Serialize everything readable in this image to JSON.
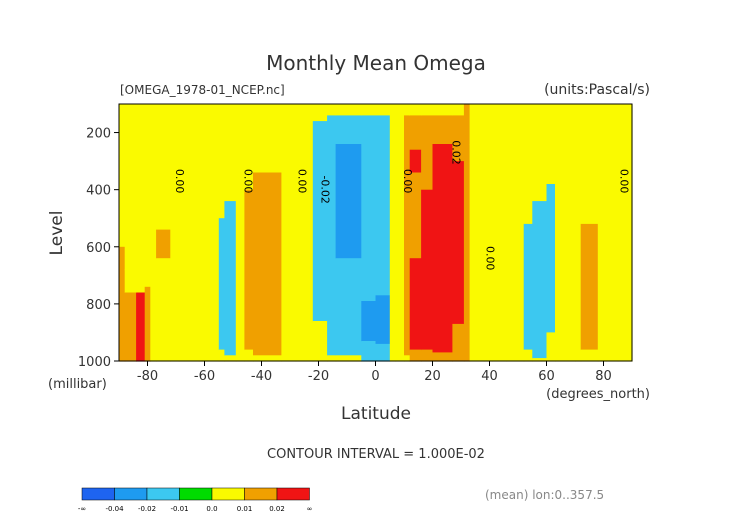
{
  "chart_data": {
    "type": "contour",
    "title": "Monthly Mean Omega",
    "file_label": "[OMEGA_1978-01_NCEP.nc]",
    "units_label": "(units:Pascal/s)",
    "xlabel": "Latitude",
    "xunits": "(degrees_north)",
    "ylabel": "Level",
    "yunits": "(millibar)",
    "xlim": [
      -90,
      90
    ],
    "ylim": [
      1000,
      100
    ],
    "x_ticks": [
      -80,
      -60,
      -40,
      -20,
      0,
      20,
      40,
      60,
      80
    ],
    "x_tick_labels": [
      "-80",
      "-60",
      "-40",
      "-20",
      "0",
      "20",
      "40",
      "60",
      "80"
    ],
    "y_ticks": [
      200,
      400,
      600,
      800,
      1000
    ],
    "y_tick_labels": [
      "200",
      "400",
      "600",
      "800",
      "1000"
    ],
    "contour_interval": "CONTOUR INTERVAL = 1.000E-02",
    "mean_note": "(mean) lon:0..357.5",
    "contour_labels": [
      {
        "text": "0.00",
        "lat": -70,
        "lev": 370
      },
      {
        "text": "0.00",
        "lat": -46,
        "lev": 370
      },
      {
        "text": "0.00",
        "lat": -27,
        "lev": 370
      },
      {
        "text": "-0.02",
        "lat": -19,
        "lev": 400
      },
      {
        "text": "0.00",
        "lat": 10,
        "lev": 370
      },
      {
        "text": "0.02",
        "lat": 27,
        "lev": 270
      },
      {
        "text": "0.00",
        "lat": 39,
        "lev": 640
      },
      {
        "text": "0.00",
        "lat": 86,
        "lev": 370
      }
    ],
    "levels": [
      -0.04,
      -0.02,
      -0.01,
      0.0,
      0.01,
      0.02
    ],
    "colorbar": {
      "labels": [
        "-∞",
        "-0.04",
        "-0.02",
        "-0.01",
        "0.0",
        "0.01",
        "0.02",
        "∞"
      ],
      "colors": [
        "#1e64f0",
        "#1e9bf0",
        "#3cc8f0",
        "#00dc00",
        "#fafa00",
        "#f0a000",
        "#f01414"
      ]
    },
    "columns": [
      {
        "lat_min": -90,
        "lat_max": -88,
        "bands": [
          {
            "from": 100,
            "to": 600,
            "value": 0.0
          },
          {
            "from": 600,
            "to": 1000,
            "value": 0.015
          }
        ]
      },
      {
        "lat_min": -88,
        "lat_max": -84,
        "bands": [
          {
            "from": 100,
            "to": 680,
            "value": 0.0
          },
          {
            "from": 680,
            "to": 760,
            "value": 0.005
          },
          {
            "from": 760,
            "to": 1000,
            "value": 0.015
          }
        ]
      },
      {
        "lat_min": -84,
        "lat_max": -81,
        "bands": [
          {
            "from": 100,
            "to": 640,
            "value": 0.0
          },
          {
            "from": 640,
            "to": 760,
            "value": 0.005
          },
          {
            "from": 760,
            "to": 1000,
            "value": 0.025
          }
        ]
      },
      {
        "lat_min": -81,
        "lat_max": -79,
        "bands": [
          {
            "from": 100,
            "to": 620,
            "value": 0.0
          },
          {
            "from": 620,
            "to": 740,
            "value": 0.005
          },
          {
            "from": 740,
            "to": 1000,
            "value": 0.015
          }
        ]
      },
      {
        "lat_min": -79,
        "lat_max": -77,
        "bands": [
          {
            "from": 100,
            "to": 620,
            "value": 0.0
          },
          {
            "from": 620,
            "to": 1000,
            "value": 0.005
          }
        ]
      },
      {
        "lat_min": -77,
        "lat_max": -72,
        "bands": [
          {
            "from": 100,
            "to": 540,
            "value": 0.005
          },
          {
            "from": 540,
            "to": 640,
            "value": 0.015
          },
          {
            "from": 640,
            "to": 1000,
            "value": 0.005
          }
        ]
      },
      {
        "lat_min": -72,
        "lat_max": -69,
        "bands": [
          {
            "from": 100,
            "to": 1000,
            "value": 0.005
          }
        ]
      },
      {
        "lat_min": -69,
        "lat_max": -62,
        "bands": [
          {
            "from": 100,
            "to": 1000,
            "value": 0.005
          }
        ]
      },
      {
        "lat_min": -62,
        "lat_max": -55,
        "bands": [
          {
            "from": 100,
            "to": 1000,
            "value": 0.0
          }
        ]
      },
      {
        "lat_min": -55,
        "lat_max": -53,
        "bands": [
          {
            "from": 100,
            "to": 500,
            "value": 0.0
          },
          {
            "from": 500,
            "to": 960,
            "value": -0.015
          },
          {
            "from": 960,
            "to": 1000,
            "value": 0.0
          }
        ]
      },
      {
        "lat_min": -53,
        "lat_max": -49,
        "bands": [
          {
            "from": 100,
            "to": 440,
            "value": 0.0
          },
          {
            "from": 440,
            "to": 980,
            "value": -0.015
          },
          {
            "from": 980,
            "to": 1000,
            "value": 0.0
          }
        ]
      },
      {
        "lat_min": -49,
        "lat_max": -46,
        "bands": [
          {
            "from": 100,
            "to": 140,
            "value": 0.0
          },
          {
            "from": 140,
            "to": 1000,
            "value": 0.005
          }
        ]
      },
      {
        "lat_min": -46,
        "lat_max": -43,
        "bands": [
          {
            "from": 100,
            "to": 400,
            "value": 0.005
          },
          {
            "from": 400,
            "to": 960,
            "value": 0.015
          },
          {
            "from": 960,
            "to": 1000,
            "value": 0.005
          }
        ]
      },
      {
        "lat_min": -43,
        "lat_max": -33,
        "bands": [
          {
            "from": 100,
            "to": 340,
            "value": 0.005
          },
          {
            "from": 340,
            "to": 980,
            "value": 0.015
          },
          {
            "from": 980,
            "to": 1000,
            "value": 0.005
          }
        ]
      },
      {
        "lat_min": -33,
        "lat_max": -28,
        "bands": [
          {
            "from": 100,
            "to": 1000,
            "value": 0.005
          }
        ]
      },
      {
        "lat_min": -28,
        "lat_max": -22,
        "bands": [
          {
            "from": 100,
            "to": 1000,
            "value": 0.0
          }
        ]
      },
      {
        "lat_min": -22,
        "lat_max": -17,
        "bands": [
          {
            "from": 100,
            "to": 160,
            "value": 0.0
          },
          {
            "from": 160,
            "to": 860,
            "value": -0.015
          },
          {
            "from": 860,
            "to": 1000,
            "value": 0.0
          }
        ]
      },
      {
        "lat_min": -17,
        "lat_max": -14,
        "bands": [
          {
            "from": 100,
            "to": 140,
            "value": 0.0
          },
          {
            "from": 140,
            "to": 980,
            "value": -0.015
          },
          {
            "from": 980,
            "to": 1000,
            "value": 0.0
          }
        ]
      },
      {
        "lat_min": -14,
        "lat_max": -5,
        "bands": [
          {
            "from": 100,
            "to": 140,
            "value": 0.0
          },
          {
            "from": 140,
            "to": 240,
            "value": -0.015
          },
          {
            "from": 240,
            "to": 640,
            "value": -0.025
          },
          {
            "from": 640,
            "to": 980,
            "value": -0.015
          },
          {
            "from": 980,
            "to": 1000,
            "value": 0.0
          }
        ]
      },
      {
        "lat_min": -5,
        "lat_max": 0,
        "bands": [
          {
            "from": 100,
            "to": 140,
            "value": 0.0
          },
          {
            "from": 140,
            "to": 790,
            "value": -0.015
          },
          {
            "from": 790,
            "to": 930,
            "value": -0.025
          },
          {
            "from": 930,
            "to": 1000,
            "value": -0.015
          }
        ]
      },
      {
        "lat_min": 0,
        "lat_max": 5,
        "bands": [
          {
            "from": 100,
            "to": 140,
            "value": 0.0
          },
          {
            "from": 140,
            "to": 770,
            "value": -0.015
          },
          {
            "from": 770,
            "to": 940,
            "value": -0.025
          },
          {
            "from": 940,
            "to": 1000,
            "value": -0.015
          }
        ]
      },
      {
        "lat_min": 5,
        "lat_max": 7,
        "bands": [
          {
            "from": 100,
            "to": 1000,
            "value": 0.0
          }
        ]
      },
      {
        "lat_min": 7,
        "lat_max": 10,
        "bands": [
          {
            "from": 100,
            "to": 1000,
            "value": 0.005
          }
        ]
      },
      {
        "lat_min": 10,
        "lat_max": 12,
        "bands": [
          {
            "from": 100,
            "to": 140,
            "value": 0.005
          },
          {
            "from": 140,
            "to": 980,
            "value": 0.015
          },
          {
            "from": 980,
            "to": 1000,
            "value": 0.005
          }
        ]
      },
      {
        "lat_min": 12,
        "lat_max": 16,
        "bands": [
          {
            "from": 100,
            "to": 140,
            "value": 0.005
          },
          {
            "from": 140,
            "to": 260,
            "value": 0.015
          },
          {
            "from": 260,
            "to": 340,
            "value": 0.025
          },
          {
            "from": 340,
            "to": 640,
            "value": 0.015
          },
          {
            "from": 640,
            "to": 960,
            "value": 0.025
          },
          {
            "from": 960,
            "to": 1000,
            "value": 0.015
          }
        ]
      },
      {
        "lat_min": 16,
        "lat_max": 20,
        "bands": [
          {
            "from": 100,
            "to": 140,
            "value": 0.005
          },
          {
            "from": 140,
            "to": 400,
            "value": 0.015
          },
          {
            "from": 400,
            "to": 960,
            "value": 0.025
          },
          {
            "from": 960,
            "to": 1000,
            "value": 0.015
          }
        ]
      },
      {
        "lat_min": 20,
        "lat_max": 27,
        "bands": [
          {
            "from": 100,
            "to": 140,
            "value": 0.005
          },
          {
            "from": 140,
            "to": 240,
            "value": 0.015
          },
          {
            "from": 240,
            "to": 970,
            "value": 0.025
          },
          {
            "from": 970,
            "to": 1000,
            "value": 0.015
          }
        ]
      },
      {
        "lat_min": 27,
        "lat_max": 31,
        "bands": [
          {
            "from": 100,
            "to": 140,
            "value": 0.005
          },
          {
            "from": 140,
            "to": 300,
            "value": 0.015
          },
          {
            "from": 300,
            "to": 870,
            "value": 0.025
          },
          {
            "from": 870,
            "to": 1000,
            "value": 0.015
          }
        ]
      },
      {
        "lat_min": 31,
        "lat_max": 33,
        "bands": [
          {
            "from": 100,
            "to": 1000,
            "value": 0.015
          }
        ]
      },
      {
        "lat_min": 33,
        "lat_max": 38,
        "bands": [
          {
            "from": 100,
            "to": 240,
            "value": 0.005
          },
          {
            "from": 240,
            "to": 860,
            "value": 0.005
          },
          {
            "from": 860,
            "to": 1000,
            "value": 0.005
          }
        ]
      },
      {
        "lat_min": 38,
        "lat_max": 41,
        "bands": [
          {
            "from": 100,
            "to": 160,
            "value": 0.005
          },
          {
            "from": 160,
            "to": 820,
            "value": 0.0
          },
          {
            "from": 820,
            "to": 1000,
            "value": 0.0
          }
        ]
      },
      {
        "lat_min": 41,
        "lat_max": 46,
        "bands": [
          {
            "from": 100,
            "to": 180,
            "value": 0.005
          },
          {
            "from": 180,
            "to": 1000,
            "value": 0.005
          }
        ]
      },
      {
        "lat_min": 46,
        "lat_max": 52,
        "bands": [
          {
            "from": 100,
            "to": 1000,
            "value": 0.0
          }
        ]
      },
      {
        "lat_min": 52,
        "lat_max": 55,
        "bands": [
          {
            "from": 100,
            "to": 520,
            "value": 0.0
          },
          {
            "from": 520,
            "to": 960,
            "value": -0.015
          },
          {
            "from": 960,
            "to": 1000,
            "value": 0.0
          }
        ]
      },
      {
        "lat_min": 55,
        "lat_max": 60,
        "bands": [
          {
            "from": 100,
            "to": 440,
            "value": 0.0
          },
          {
            "from": 440,
            "to": 990,
            "value": -0.015
          },
          {
            "from": 990,
            "to": 1000,
            "value": 0.0
          }
        ]
      },
      {
        "lat_min": 60,
        "lat_max": 63,
        "bands": [
          {
            "from": 100,
            "to": 380,
            "value": 0.0
          },
          {
            "from": 380,
            "to": 900,
            "value": -0.015
          },
          {
            "from": 900,
            "to": 1000,
            "value": 0.0
          }
        ]
      },
      {
        "lat_min": 63,
        "lat_max": 70,
        "bands": [
          {
            "from": 100,
            "to": 1000,
            "value": 0.0
          }
        ]
      },
      {
        "lat_min": 70,
        "lat_max": 72,
        "bands": [
          {
            "from": 100,
            "to": 560,
            "value": 0.005
          },
          {
            "from": 560,
            "to": 1000,
            "value": 0.005
          }
        ]
      },
      {
        "lat_min": 72,
        "lat_max": 78,
        "bands": [
          {
            "from": 100,
            "to": 520,
            "value": 0.005
          },
          {
            "from": 520,
            "to": 960,
            "value": 0.015
          },
          {
            "from": 960,
            "to": 1000,
            "value": 0.005
          }
        ]
      },
      {
        "lat_min": 78,
        "lat_max": 81,
        "bands": [
          {
            "from": 100,
            "to": 1000,
            "value": 0.005
          }
        ]
      },
      {
        "lat_min": 81,
        "lat_max": 85,
        "bands": [
          {
            "from": 100,
            "to": 1000,
            "value": 0.005
          }
        ]
      },
      {
        "lat_min": 85,
        "lat_max": 90,
        "bands": [
          {
            "from": 100,
            "to": 1000,
            "value": 0.0
          }
        ]
      }
    ]
  }
}
